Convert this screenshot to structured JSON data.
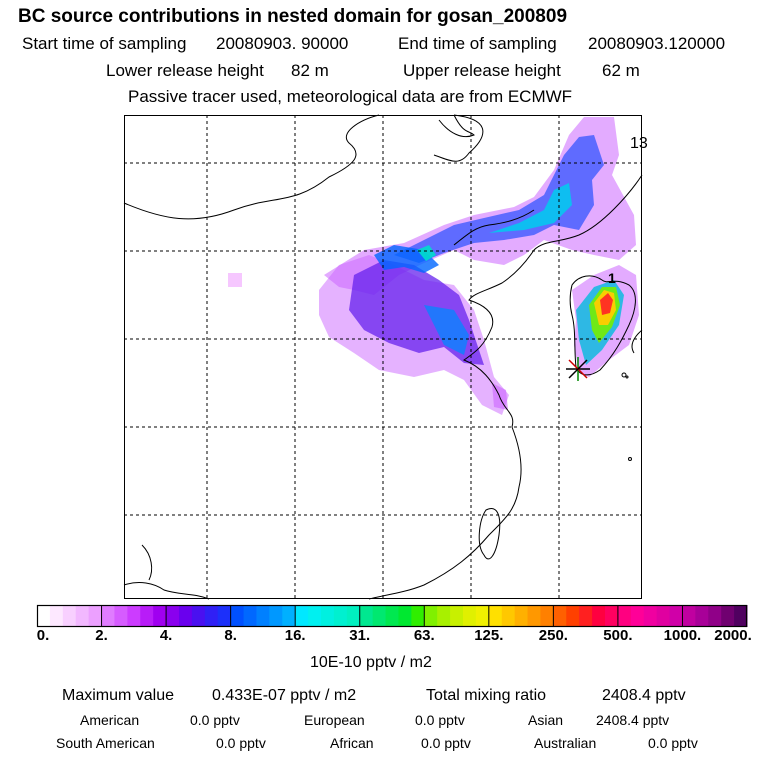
{
  "title": "BC  source contributions in nested domain for gosan_200809",
  "sampling": {
    "start_label": "Start time of sampling",
    "start_value": "20080903. 90000",
    "end_label": "End time of sampling",
    "end_value": "20080903.120000"
  },
  "release": {
    "lower_label": "Lower release height",
    "lower_value": "82 m",
    "upper_label": "Upper release height",
    "upper_value": "62 m"
  },
  "note": "Passive tracer used, meteorological data are from ECMWF",
  "map_labels": {
    "top_right": "13",
    "station_1": "1"
  },
  "chart_data": {
    "type": "heatmap",
    "title": "BC  source contributions in nested domain for gosan_200809",
    "colorbar": {
      "ticks": [
        "0.",
        "2.",
        "4.",
        "8.",
        "16.",
        "31.",
        "63.",
        "125.",
        "250.",
        "500.",
        "1000.",
        "2000."
      ],
      "units": "10E-10 pptv / m2",
      "scale": "log2"
    },
    "receptor_marker": "gosan"
  },
  "stats": {
    "max_label": "Maximum value",
    "max_value": "0.433E-07 pptv / m2",
    "total_label": "Total mixing ratio",
    "total_value": "2408.4 pptv"
  },
  "regions": [
    {
      "name": "American",
      "value": "0.0 pptv"
    },
    {
      "name": "European",
      "value": "0.0 pptv"
    },
    {
      "name": "Asian",
      "value": "2408.4 pptv"
    },
    {
      "name": "South American",
      "value": "0.0 pptv"
    },
    {
      "name": "African",
      "value": "0.0 pptv"
    },
    {
      "name": "Australian",
      "value": "0.0 pptv"
    }
  ]
}
